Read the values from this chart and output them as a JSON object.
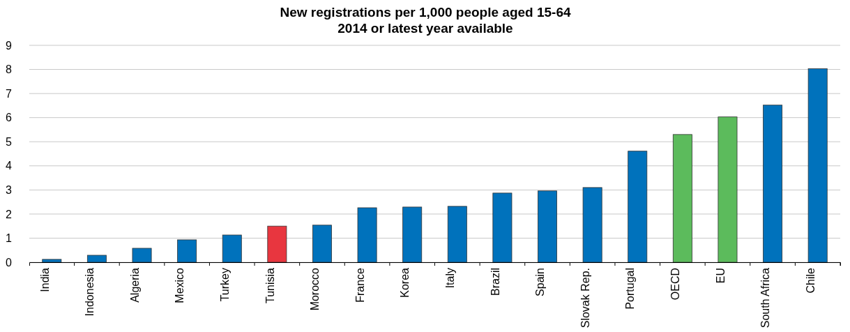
{
  "chart_data": {
    "type": "bar",
    "title": "New registrations per 1,000 people aged 15-64",
    "subtitle": "2014 or latest year available",
    "categories": [
      "India",
      "Indonesia",
      "Algeria",
      "Mexico",
      "Turkey",
      "Tunisia",
      "Morocco",
      "France",
      "Korea",
      "Italy",
      "Brazil",
      "Spain",
      "Slovak Rep.",
      "Portugal",
      "OECD",
      "EU",
      "South Africa",
      "Chile"
    ],
    "values": [
      0.12,
      0.29,
      0.58,
      0.93,
      1.13,
      1.5,
      1.54,
      2.26,
      2.29,
      2.32,
      2.87,
      2.96,
      3.1,
      4.61,
      5.3,
      6.03,
      6.52,
      8.03
    ],
    "colors": [
      "#0072bc",
      "#0072bc",
      "#0072bc",
      "#0072bc",
      "#0072bc",
      "#e8363f",
      "#0072bc",
      "#0072bc",
      "#0072bc",
      "#0072bc",
      "#0072bc",
      "#0072bc",
      "#0072bc",
      "#0072bc",
      "#5cbb5c",
      "#5cbb5c",
      "#0072bc",
      "#0072bc"
    ],
    "ylim": [
      0,
      9
    ],
    "yticks": [
      0,
      1,
      2,
      3,
      4,
      5,
      6,
      7,
      8,
      9
    ],
    "grid": "y"
  }
}
